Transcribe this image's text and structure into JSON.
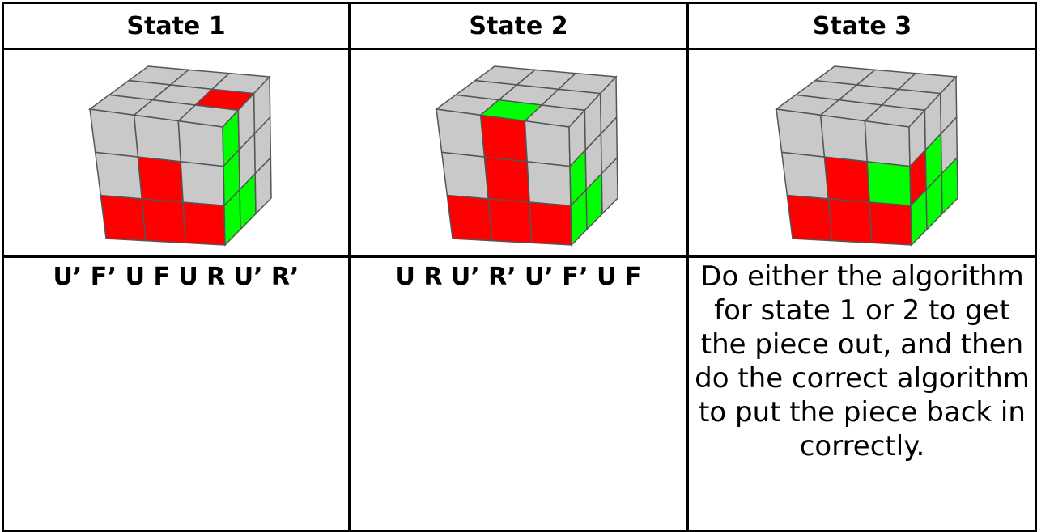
{
  "table": {
    "header": [
      "State 1",
      "State 2",
      "State 3"
    ],
    "moves": [
      "U’ F’ U F U R U’ R’",
      "U R U’ R’ U’ F’ U F",
      "Do either the algorithm for state 1 or 2 to get the piece out, and then do the correct algorithm to put the piece back in correctly."
    ]
  }
}
